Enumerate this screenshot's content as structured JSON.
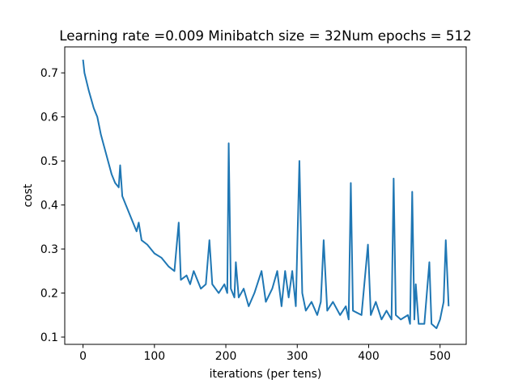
{
  "chart_data": {
    "type": "line",
    "title": "Learning rate =0.009 Minibatch size = 32Num epochs = 512",
    "x_label": "iterations (per tens)",
    "y_label": "cost",
    "x": [
      0,
      2,
      8,
      15,
      20,
      25,
      30,
      35,
      40,
      45,
      50,
      52,
      55,
      60,
      65,
      70,
      75,
      78,
      82,
      90,
      100,
      110,
      120,
      128,
      134,
      137,
      145,
      150,
      155,
      165,
      172,
      177,
      181,
      190,
      198,
      202,
      204,
      207,
      212,
      214,
      218,
      225,
      232,
      240,
      250,
      256,
      265,
      272,
      278,
      283,
      288,
      293,
      298,
      303,
      307,
      312,
      320,
      328,
      333,
      337,
      342,
      350,
      360,
      368,
      372,
      375,
      378,
      390,
      399,
      403,
      410,
      418,
      425,
      432,
      435,
      438,
      445,
      455,
      458,
      461,
      464,
      466,
      470,
      478,
      485,
      488,
      495,
      500,
      505,
      508,
      512
    ],
    "series": [
      {
        "name": "cost",
        "color": "#1f77b4",
        "values": [
          0.73,
          0.7,
          0.66,
          0.62,
          0.6,
          0.56,
          0.53,
          0.5,
          0.47,
          0.45,
          0.44,
          0.49,
          0.42,
          0.4,
          0.38,
          0.36,
          0.34,
          0.36,
          0.32,
          0.31,
          0.29,
          0.28,
          0.26,
          0.25,
          0.36,
          0.23,
          0.24,
          0.22,
          0.25,
          0.21,
          0.22,
          0.32,
          0.22,
          0.2,
          0.22,
          0.2,
          0.54,
          0.21,
          0.19,
          0.27,
          0.19,
          0.21,
          0.17,
          0.2,
          0.25,
          0.18,
          0.21,
          0.25,
          0.17,
          0.25,
          0.19,
          0.25,
          0.17,
          0.5,
          0.2,
          0.16,
          0.18,
          0.15,
          0.18,
          0.32,
          0.16,
          0.18,
          0.15,
          0.17,
          0.14,
          0.45,
          0.16,
          0.15,
          0.31,
          0.15,
          0.18,
          0.14,
          0.16,
          0.14,
          0.46,
          0.15,
          0.14,
          0.15,
          0.13,
          0.43,
          0.14,
          0.22,
          0.13,
          0.13,
          0.27,
          0.13,
          0.12,
          0.14,
          0.18,
          0.32,
          0.17
        ]
      }
    ],
    "xlim": [
      -25.6,
      536.6
    ],
    "ylim": [
      0.0835,
      0.759
    ],
    "xticks": [
      0,
      100,
      200,
      300,
      400,
      500
    ],
    "yticks": [
      0.1,
      0.2,
      0.3,
      0.4,
      0.5,
      0.6,
      0.7
    ]
  }
}
